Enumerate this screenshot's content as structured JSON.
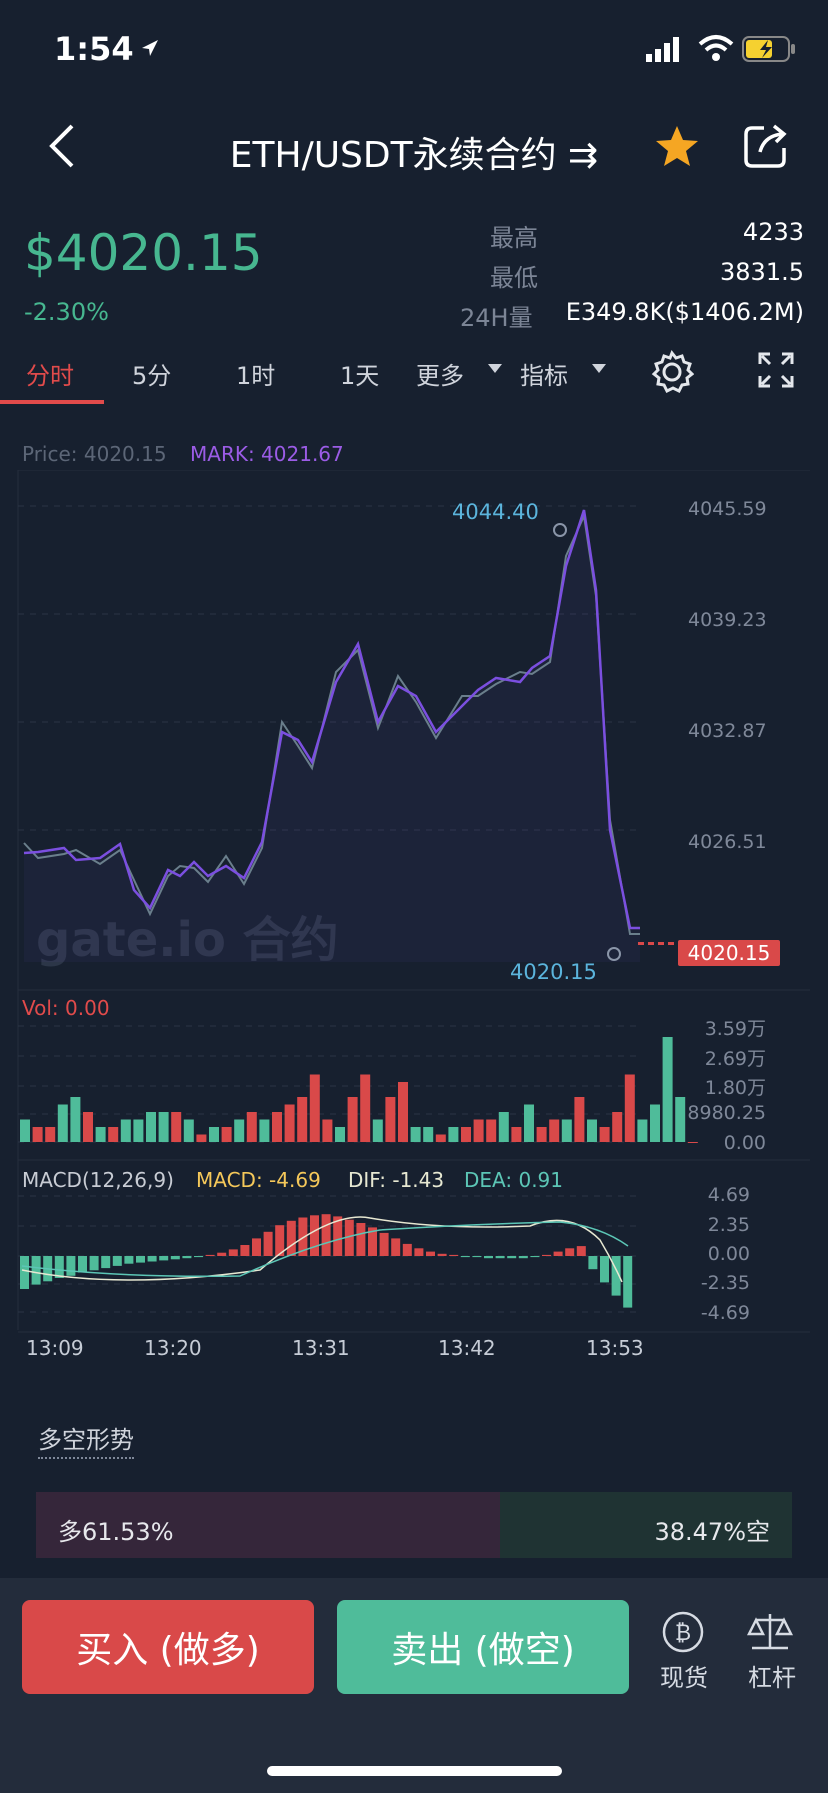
{
  "status": {
    "time": "1:54"
  },
  "header": {
    "title": "ETH/USDT永续合约 ⇉"
  },
  "ticker": {
    "price": "$4020.15",
    "change": "-2.30%",
    "high_label": "最高",
    "high_value": "4233",
    "low_label": "最低",
    "low_value": "3831.5",
    "vol_label": "24H量",
    "vol_value": "E349.8K($1406.2M)"
  },
  "tabs": [
    {
      "label": "分时"
    },
    {
      "label": "5分"
    },
    {
      "label": "1时"
    },
    {
      "label": "1天"
    },
    {
      "label": "更多"
    },
    {
      "label": "指标"
    }
  ],
  "chart": {
    "price_label": "Price: 4020.15",
    "mark_label": "MARK: 4021.67",
    "y_ticks": [
      "4045.59",
      "4039.23",
      "4032.87",
      "4026.51"
    ],
    "high_annot": "4044.40",
    "low_annot": "4020.15",
    "current_tag": "4020.15",
    "watermark": "gate.io 合约",
    "vol_label": "Vol: 0.00",
    "vol_ticks": [
      "3.59万",
      "2.69万",
      "1.80万",
      "8980.25",
      "0.00"
    ],
    "macd_label": "MACD(12,26,9)",
    "macd_value": "MACD: -4.69",
    "dif_value": "DIF: -1.43",
    "dea_value": "DEA: 0.91",
    "macd_ticks": [
      "4.69",
      "2.35",
      "0.00",
      "-2.35",
      "-4.69"
    ],
    "x_ticks": [
      "13:09",
      "13:20",
      "13:31",
      "13:42",
      "13:53"
    ],
    "colors": {
      "mark": "#7b4fe0",
      "price": "#6a7f8c",
      "up": "#4fbc9a",
      "down": "#d94949",
      "macd": "#f5c85a",
      "dif": "#e7e8d2",
      "dea": "#5cc6b6"
    }
  },
  "chart_data": {
    "type": "line",
    "x": [
      "13:09",
      "13:20",
      "13:31",
      "13:42",
      "13:53"
    ],
    "series": [
      {
        "name": "MARK",
        "values": [
          4026.2,
          4023.5,
          4038.8,
          4036.8,
          4020.9
        ]
      },
      {
        "name": "Price",
        "values": [
          4026.4,
          4023.9,
          4038.2,
          4037.5,
          4020.15
        ]
      }
    ],
    "ylim": [
      4020.15,
      4045.59
    ]
  },
  "sentiment": {
    "title": "多空形势",
    "long": "多61.53%",
    "short": "38.47%空",
    "long_ratio": 0.6153
  },
  "actions": {
    "buy": "买入 (做多)",
    "sell": "卖出 (做空)",
    "spot": "现货",
    "leverage": "杠杆"
  }
}
